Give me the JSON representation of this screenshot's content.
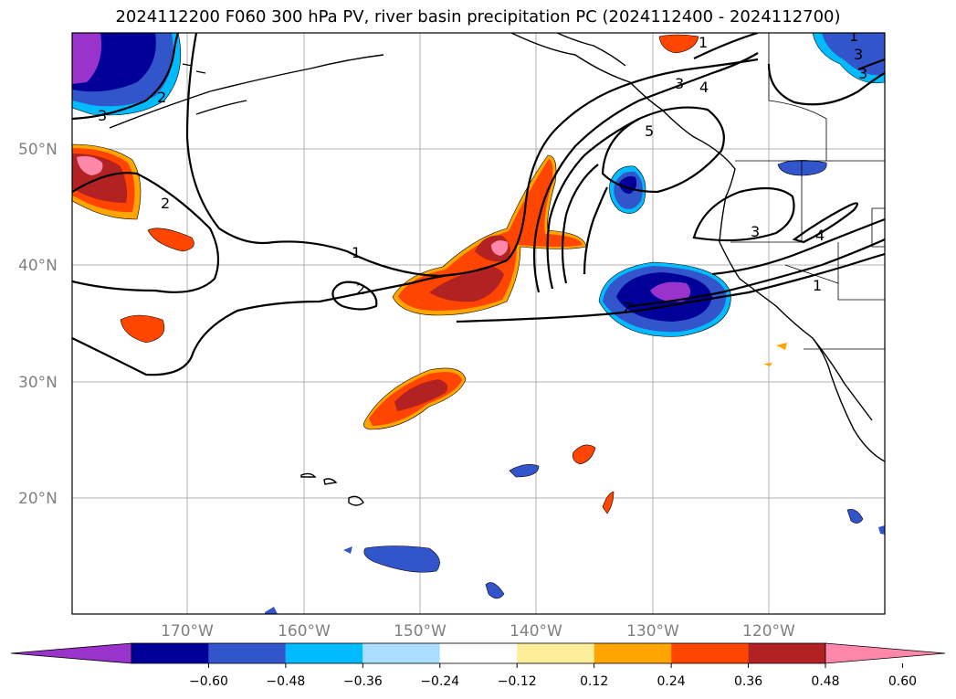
{
  "title": "2024112200 F060 300 hPa PV, river basin precipitation PC (2024112400 - 2024112700)",
  "axes": {
    "lat_labels": [
      "50°N",
      "40°N",
      "30°N",
      "20°N"
    ],
    "lon_labels": [
      "170°W",
      "160°W",
      "150°W",
      "140°W",
      "130°W",
      "120°W"
    ]
  },
  "colorbar": {
    "ticks": [
      "−0.60",
      "−0.48",
      "−0.36",
      "−0.24",
      "−0.12",
      "0.12",
      "0.24",
      "0.36",
      "0.48",
      "0.60"
    ],
    "colors": [
      "#9933cc",
      "#000099",
      "#3355cc",
      "#00bbff",
      "#aaddff",
      "#ffffff",
      "#ffee99",
      "#ffa500",
      "#ff4500",
      "#b22222",
      "#ff88aa"
    ]
  },
  "contour_labels": [
    "3",
    "2",
    "2",
    "2",
    "1",
    "1",
    "3",
    "4",
    "5",
    "2",
    "3",
    "4",
    "1",
    "1",
    "3",
    "3"
  ]
}
